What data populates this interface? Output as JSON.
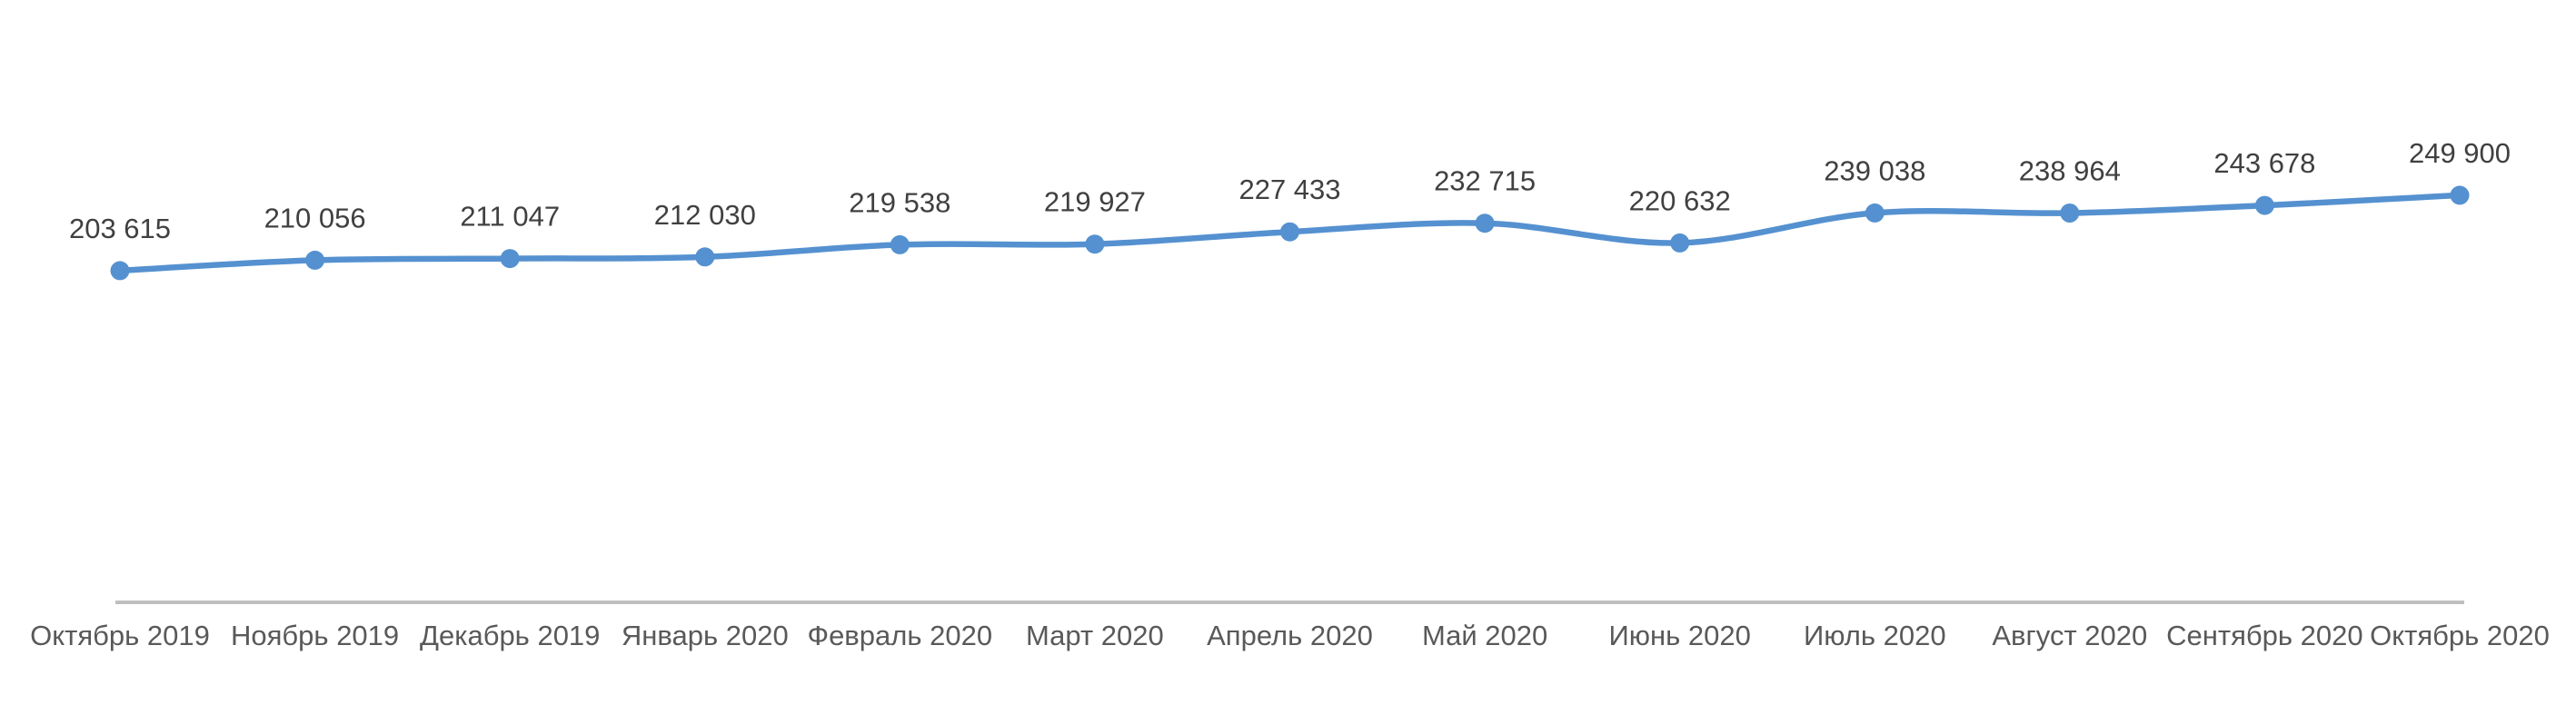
{
  "chart_data": {
    "type": "line",
    "title": "",
    "categories": [
      "Октябрь 2019",
      "Ноябрь 2019",
      "Декабрь 2019",
      "Январь 2020",
      "Февраль 2020",
      "Март 2020",
      "Апрель 2020",
      "Май 2020",
      "Июнь 2020",
      "Июль 2020",
      "Август 2020",
      "Сентябрь 2020",
      "Октябрь 2020"
    ],
    "series": [
      {
        "name": "",
        "values": [
          203615,
          210056,
          211047,
          212030,
          219538,
          219927,
          227433,
          232715,
          220632,
          239038,
          238964,
          243678,
          249900
        ]
      }
    ],
    "point_labels": [
      "203 615",
      "210 056",
      "211 047",
      "212 030",
      "219 538",
      "219 927",
      "227 433",
      "232 715",
      "220 632",
      "239 038",
      "238 964",
      "243 678",
      "249 900"
    ],
    "xlabel": "",
    "ylabel": "",
    "baseline_value": 0,
    "layout": {
      "legend": "none",
      "gridlines": false,
      "value_axis_visible": false,
      "category_axis_visible": true,
      "smooth_line": true,
      "data_labels_position": "above"
    },
    "colors": {
      "line": "#5591d0",
      "marker": "#5591d0",
      "axis_line": "#bfbfbf",
      "data_label": "#404040",
      "axis_label": "#595959",
      "background": "#ffffff"
    }
  }
}
